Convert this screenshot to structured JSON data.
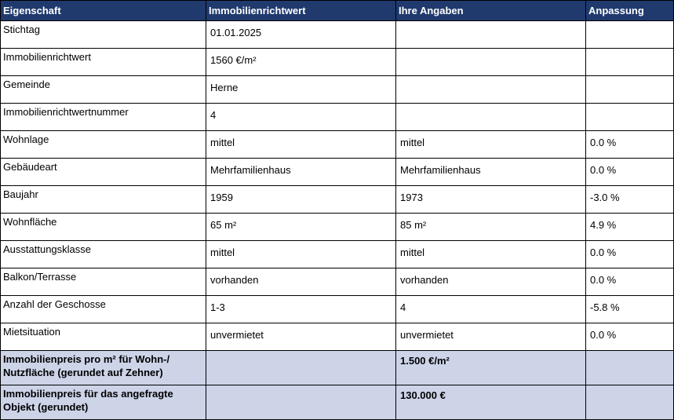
{
  "table": {
    "header": [
      "Eigenschaft",
      "Immobilienrichtwert",
      "Ihre Angaben",
      "Anpassung"
    ],
    "rows": [
      [
        "Stichtag",
        "01.01.2025",
        null,
        null
      ],
      [
        "Immobilienrichtwert",
        "1560 €/m²",
        null,
        null
      ],
      [
        "Gemeinde",
        "Herne",
        null,
        null
      ],
      [
        "Immobilienrichtwertnummer",
        "4",
        null,
        null
      ],
      [
        "Wohnlage",
        "mittel",
        "mittel",
        "0.0 %"
      ],
      [
        "Gebäudeart",
        "Mehrfamilienhaus",
        "Mehrfamilienhaus",
        "0.0 %"
      ],
      [
        "Baujahr",
        "1959",
        "1973",
        "-3.0 %"
      ],
      [
        "Wohnfläche",
        "65 m²",
        "85 m²",
        "4.9 %"
      ],
      [
        "Ausstattungsklasse",
        "mittel",
        "mittel",
        "0.0 %"
      ],
      [
        "Balkon/Terrasse",
        "vorhanden",
        "vorhanden",
        "0.0 %"
      ],
      [
        "Anzahl der Geschosse",
        "1-3",
        "4",
        "-5.8 %"
      ],
      [
        "Mietsituation",
        "unvermietet",
        "unvermietet",
        "0.0 %"
      ]
    ],
    "summary": [
      [
        "Immobilienpreis pro m² für Wohn-/ Nutzfläche (gerundet auf Zehner)",
        null,
        "1.500 €/m²",
        null
      ],
      [
        "Immobilienpreis für das angefragte Objekt (gerundet)",
        null,
        "130.000 €",
        null
      ]
    ]
  }
}
